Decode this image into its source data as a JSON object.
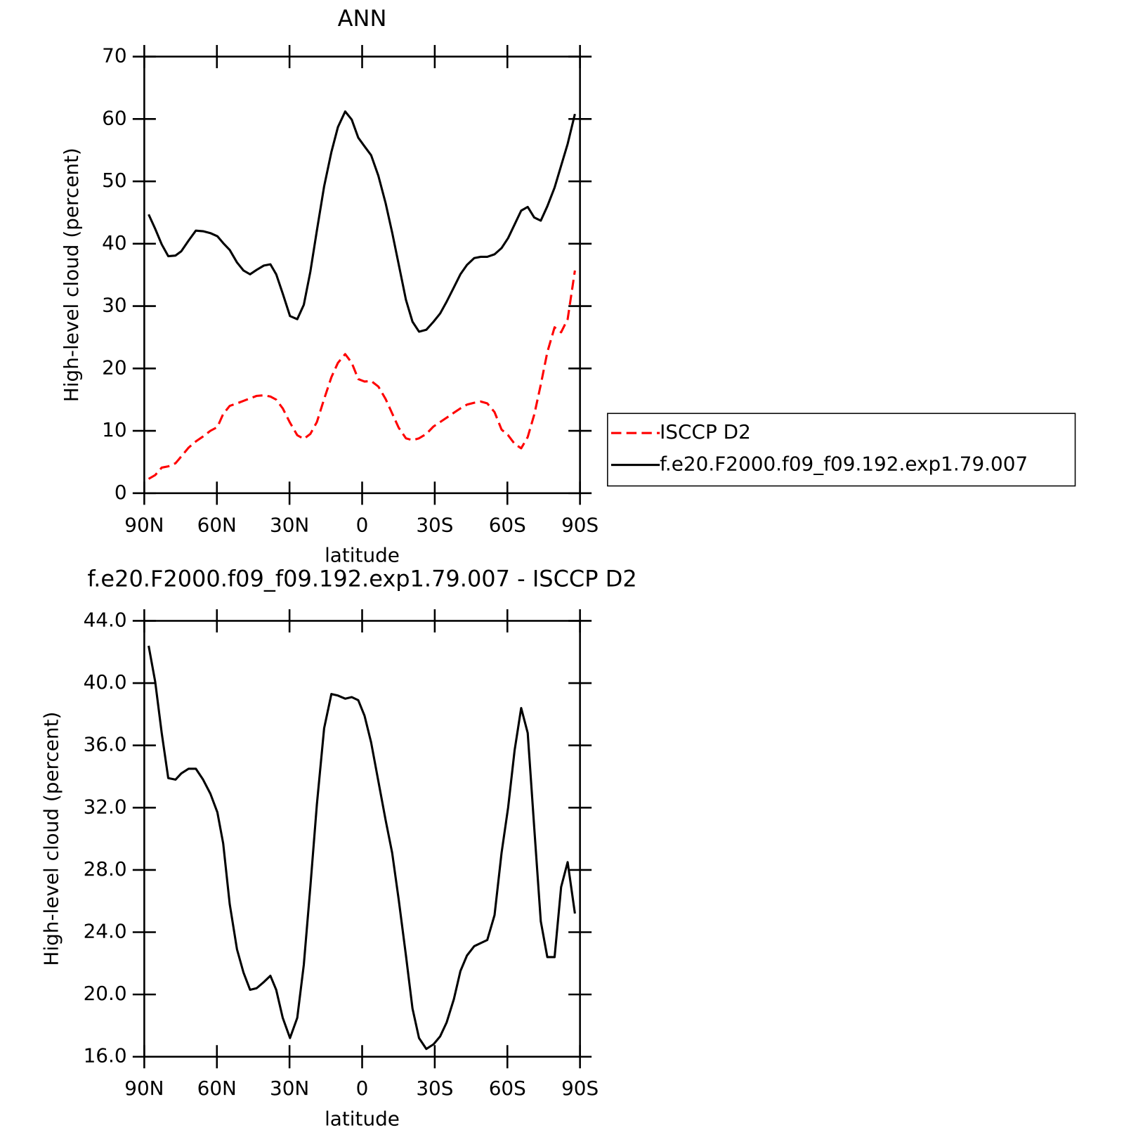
{
  "chart_data": [
    {
      "type": "line",
      "title": "ANN",
      "x_label": "latitude",
      "y_label": "High-level cloud (percent)",
      "x": [
        88.2,
        85.5,
        82.8,
        80.1,
        77.1,
        74.7,
        71.7,
        68.7,
        65.7,
        62.7,
        59.8,
        57.4,
        54.7,
        51.7,
        49.0,
        46.3,
        43.6,
        40.6,
        37.9,
        35.5,
        32.8,
        29.8,
        26.8,
        24.1,
        21.4,
        18.7,
        15.7,
        12.7,
        10.0,
        7.0,
        4.3,
        1.6,
        -1.0,
        -3.7,
        -6.7,
        -9.7,
        -12.4,
        -15.1,
        -18.1,
        -20.8,
        -23.5,
        -26.5,
        -29.5,
        -32.2,
        -34.9,
        -37.9,
        -40.6,
        -43.3,
        -46.3,
        -49.0,
        -51.7,
        -54.7,
        -57.6,
        -60.3,
        -63.0,
        -65.7,
        -68.4,
        -71.1,
        -73.8,
        -76.5,
        -79.5,
        -82.2,
        -84.9,
        -87.9
      ],
      "series": [
        {
          "name": "ISCCP D2",
          "color": "#ff0000",
          "linestyle": "dashed",
          "values": [
            2.3,
            2.9,
            4.1,
            4.3,
            4.8,
            5.9,
            7.3,
            8.3,
            9.1,
            10.0,
            10.6,
            12.7,
            14.0,
            14.4,
            14.8,
            15.2,
            15.6,
            15.7,
            15.5,
            15.0,
            13.6,
            11.3,
            9.3,
            8.7,
            9.5,
            11.4,
            15.1,
            18.6,
            20.9,
            22.3,
            20.9,
            18.3,
            17.9,
            18.0,
            17.1,
            15.1,
            12.8,
            10.5,
            8.8,
            8.5,
            8.8,
            9.5,
            10.7,
            11.4,
            12.1,
            12.9,
            13.6,
            14.2,
            14.5,
            14.7,
            14.4,
            13.0,
            10.2,
            9.3,
            7.9,
            7.2,
            9.0,
            12.6,
            17.4,
            22.6,
            26.6,
            25.8,
            27.9,
            35.7
          ]
        },
        {
          "name": "f.e20.F2000.f09_f09.192.exp1.79.007",
          "color": "#000000",
          "linestyle": "solid",
          "values": [
            44.7,
            42.4,
            39.9,
            38.0,
            38.1,
            38.8,
            40.5,
            42.1,
            42.0,
            41.7,
            41.2,
            40.1,
            39.0,
            37.0,
            35.7,
            35.1,
            35.8,
            36.5,
            36.7,
            35.1,
            32.0,
            28.4,
            27.9,
            30.2,
            35.5,
            42.1,
            49.2,
            54.7,
            58.7,
            61.2,
            59.9,
            57.0,
            55.6,
            54.2,
            50.9,
            46.5,
            41.8,
            36.7,
            31.0,
            27.5,
            25.9,
            26.2,
            27.5,
            28.8,
            30.7,
            33.0,
            35.1,
            36.6,
            37.7,
            37.9,
            37.9,
            38.3,
            39.3,
            40.9,
            43.1,
            45.3,
            45.9,
            44.2,
            43.7,
            46.0,
            49.0,
            52.5,
            56.0,
            60.8
          ]
        }
      ],
      "xlim": [
        90,
        -90
      ],
      "xticks": [
        {
          "value": 90,
          "label": "90N"
        },
        {
          "value": 60,
          "label": "60N"
        },
        {
          "value": 30,
          "label": "30N"
        },
        0,
        {
          "value": -30,
          "label": "30S"
        },
        {
          "value": -60,
          "label": "60S"
        },
        {
          "value": -90,
          "label": "90S"
        }
      ],
      "ylim": [
        0,
        70
      ],
      "yticks": [
        0,
        10,
        20,
        30,
        40,
        50,
        60,
        70
      ],
      "legend": "right"
    },
    {
      "type": "line",
      "title": "f.e20.F2000.f09_f09.192.exp1.79.007 - ISCCP D2",
      "x_label": "latitude",
      "y_label": "High-level cloud (percent)",
      "x": [
        88.2,
        85.5,
        82.8,
        80.1,
        77.1,
        74.7,
        71.7,
        68.7,
        65.7,
        62.7,
        59.8,
        57.4,
        54.7,
        51.7,
        49.0,
        46.3,
        43.6,
        40.6,
        37.9,
        35.5,
        32.8,
        29.8,
        26.8,
        24.1,
        21.4,
        18.7,
        15.7,
        12.7,
        10.0,
        7.0,
        4.3,
        1.6,
        -1.0,
        -3.7,
        -6.7,
        -9.7,
        -12.4,
        -15.1,
        -18.1,
        -20.8,
        -23.5,
        -26.5,
        -29.5,
        -32.2,
        -34.9,
        -37.9,
        -40.6,
        -43.3,
        -46.3,
        -49.0,
        -51.7,
        -54.7,
        -57.6,
        -60.3,
        -63.0,
        -65.7,
        -68.4,
        -71.1,
        -73.8,
        -76.5,
        -79.5,
        -82.2,
        -84.9,
        -87.9
      ],
      "values": [
        42.4,
        40.1,
        36.8,
        33.9,
        33.8,
        34.2,
        34.5,
        34.5,
        33.8,
        32.9,
        31.7,
        29.7,
        25.8,
        22.9,
        21.4,
        20.3,
        20.4,
        20.8,
        21.2,
        20.3,
        18.5,
        17.2,
        18.5,
        21.9,
        26.9,
        32.2,
        37.1,
        39.3,
        39.2,
        39.0,
        39.1,
        38.9,
        37.9,
        36.2,
        33.7,
        31.2,
        29.1,
        26.1,
        22.5,
        19.1,
        17.2,
        16.5,
        16.8,
        17.3,
        18.2,
        19.7,
        21.5,
        22.5,
        23.1,
        23.3,
        23.5,
        25.1,
        29.1,
        32.0,
        35.7,
        38.4,
        36.8,
        30.7,
        24.7,
        22.4,
        22.4,
        26.9,
        28.5,
        25.2
      ],
      "color": "#000000",
      "xlim": [
        90,
        -90
      ],
      "xticks": [
        {
          "value": 90,
          "label": "90N"
        },
        {
          "value": 60,
          "label": "60N"
        },
        {
          "value": 30,
          "label": "30N"
        },
        0,
        {
          "value": -30,
          "label": "30S"
        },
        {
          "value": -60,
          "label": "60S"
        },
        {
          "value": -90,
          "label": "90S"
        }
      ],
      "ylim": [
        16,
        44
      ],
      "yticks": [
        {
          "value": 16,
          "label": "16.0"
        },
        {
          "value": 20,
          "label": "20.0"
        },
        {
          "value": 24,
          "label": "24.0"
        },
        {
          "value": 28,
          "label": "28.0"
        },
        {
          "value": 32,
          "label": "32.0"
        },
        {
          "value": 36,
          "label": "36.0"
        },
        {
          "value": 40,
          "label": "40.0"
        },
        {
          "value": 44,
          "label": "44.0"
        }
      ]
    }
  ]
}
